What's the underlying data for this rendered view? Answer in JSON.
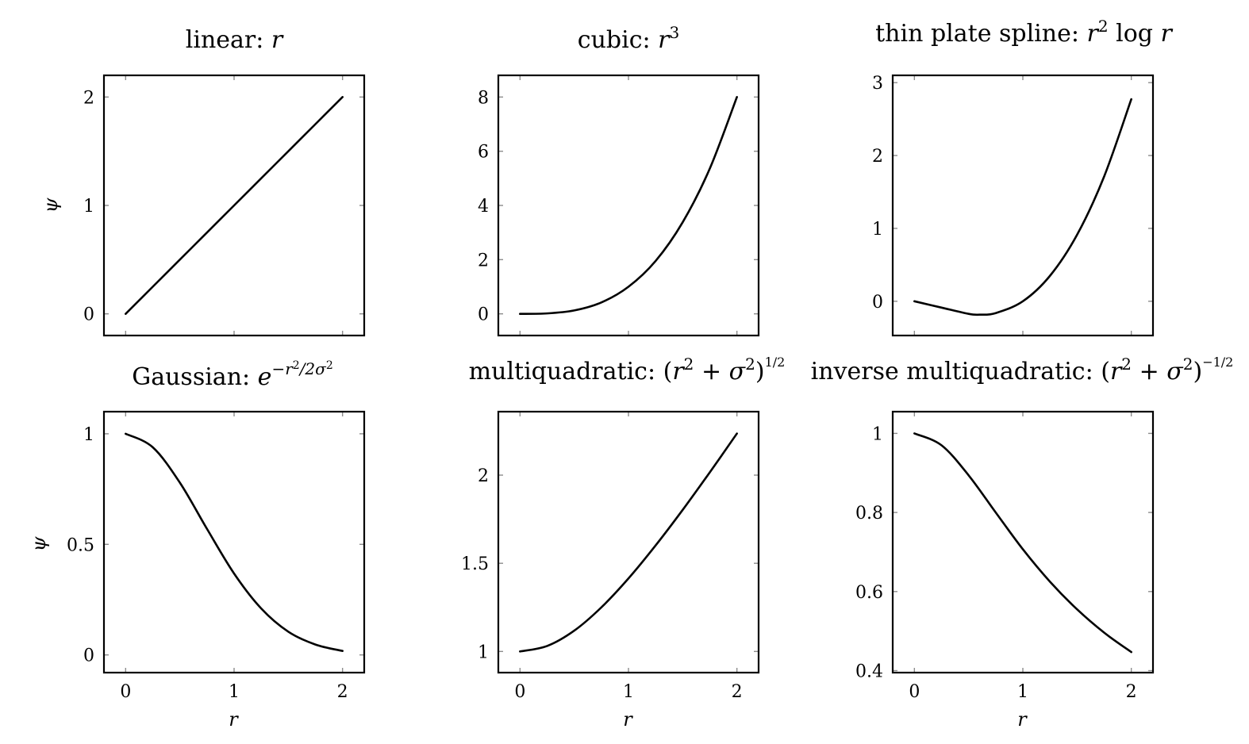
{
  "chart_data": [
    {
      "type": "line",
      "title": "linear: r",
      "xlabel": "",
      "ylabel": "ψ",
      "xlim": [
        -0.2,
        2.2
      ],
      "ylim": [
        -0.2,
        2.2
      ],
      "xticks": [
        0,
        1,
        2
      ],
      "xtick_labels": [
        "",
        "",
        ""
      ],
      "yticks": [
        0,
        1,
        2
      ],
      "ytick_labels": [
        "0",
        "1",
        "2"
      ],
      "series": [
        {
          "x": [
            0,
            0.25,
            0.5,
            0.75,
            1,
            1.25,
            1.5,
            1.75,
            2
          ],
          "y": [
            0,
            0.25,
            0.5,
            0.75,
            1,
            1.25,
            1.5,
            1.75,
            2
          ]
        }
      ]
    },
    {
      "type": "line",
      "title": "cubic: r³",
      "xlabel": "",
      "ylabel": "",
      "xlim": [
        -0.2,
        2.2
      ],
      "ylim": [
        -0.8,
        8.8
      ],
      "xticks": [
        0,
        1,
        2
      ],
      "xtick_labels": [
        "",
        "",
        ""
      ],
      "yticks": [
        0,
        2,
        4,
        6,
        8
      ],
      "ytick_labels": [
        "0",
        "2",
        "4",
        "6",
        "8"
      ],
      "series": [
        {
          "x": [
            0,
            0.25,
            0.5,
            0.75,
            1,
            1.25,
            1.5,
            1.75,
            2
          ],
          "y": [
            0,
            0.016,
            0.125,
            0.42,
            1,
            1.95,
            3.38,
            5.36,
            8
          ]
        }
      ]
    },
    {
      "type": "line",
      "title": "thin plate spline: r² log r",
      "xlabel": "",
      "ylabel": "",
      "xlim": [
        -0.2,
        2.2
      ],
      "ylim": [
        -0.47,
        3.1
      ],
      "xticks": [
        0,
        1,
        2
      ],
      "xtick_labels": [
        "",
        "",
        ""
      ],
      "yticks": [
        0,
        1,
        2,
        3
      ],
      "ytick_labels": [
        "0",
        "1",
        "2",
        "3"
      ],
      "series": [
        {
          "x": [
            0,
            0.25,
            0.5,
            0.6,
            0.75,
            1,
            1.25,
            1.5,
            1.75,
            2
          ],
          "y": [
            0,
            -0.087,
            -0.173,
            -0.184,
            -0.162,
            0,
            0.349,
            0.912,
            1.714,
            2.773
          ]
        }
      ]
    },
    {
      "type": "line",
      "title": "Gaussian: e^(−r²/2σ²)",
      "xlabel": "r",
      "ylabel": "ψ",
      "xlim": [
        -0.2,
        2.2
      ],
      "ylim": [
        -0.08,
        1.1
      ],
      "xticks": [
        0,
        1,
        2
      ],
      "xtick_labels": [
        "0",
        "1",
        "2"
      ],
      "yticks": [
        0,
        0.5,
        1
      ],
      "ytick_labels": [
        "0",
        "0.5",
        "1"
      ],
      "series": [
        {
          "x": [
            0,
            0.25,
            0.5,
            0.75,
            1,
            1.25,
            1.5,
            1.75,
            2
          ],
          "y": [
            1,
            0.939,
            0.779,
            0.57,
            0.368,
            0.21,
            0.105,
            0.047,
            0.018
          ]
        }
      ]
    },
    {
      "type": "line",
      "title": "multiquadratic: (r² + σ²)^(1/2)",
      "xlabel": "r",
      "ylabel": "",
      "xlim": [
        -0.2,
        2.2
      ],
      "ylim": [
        0.88,
        2.36
      ],
      "xticks": [
        0,
        1,
        2
      ],
      "xtick_labels": [
        "0",
        "1",
        "2"
      ],
      "yticks": [
        1,
        1.5,
        2
      ],
      "ytick_labels": [
        "1",
        "1.5",
        "2"
      ],
      "series": [
        {
          "x": [
            0,
            0.25,
            0.5,
            0.75,
            1,
            1.25,
            1.5,
            1.75,
            2
          ],
          "y": [
            1,
            1.031,
            1.118,
            1.25,
            1.414,
            1.601,
            1.803,
            2.016,
            2.236
          ]
        }
      ]
    },
    {
      "type": "line",
      "title": "inverse multiquadratic: (r² + σ²)^(−1/2)",
      "xlabel": "r",
      "ylabel": "",
      "xlim": [
        -0.2,
        2.2
      ],
      "ylim": [
        0.395,
        1.055
      ],
      "xticks": [
        0,
        1,
        2
      ],
      "xtick_labels": [
        "0",
        "1",
        "2"
      ],
      "yticks": [
        0.4,
        0.6,
        0.8,
        1
      ],
      "ytick_labels": [
        "0.4",
        "0.6",
        "0.8",
        "1"
      ],
      "series": [
        {
          "x": [
            0,
            0.25,
            0.5,
            0.75,
            1,
            1.25,
            1.5,
            1.75,
            2
          ],
          "y": [
            1,
            0.97,
            0.894,
            0.8,
            0.707,
            0.625,
            0.555,
            0.496,
            0.447
          ]
        }
      ]
    }
  ]
}
